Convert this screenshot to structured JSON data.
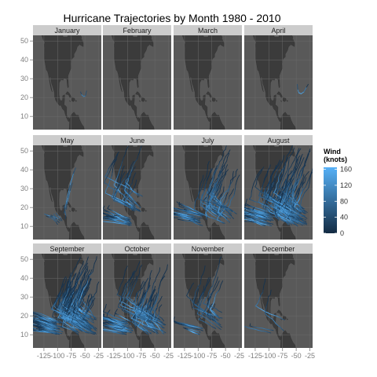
{
  "chart_data": {
    "type": "line",
    "title": "Hurricane Trajectories by Month 1980 - 2010",
    "xlabel": "",
    "ylabel": "",
    "xlim": [
      -145,
      -20
    ],
    "ylim": [
      3,
      53
    ],
    "x_ticks": [
      -125,
      -100,
      -75,
      -50,
      -25
    ],
    "x_tick_labels": [
      "-125",
      "-100",
      "-75",
      "-50",
      "-25"
    ],
    "y_ticks": [
      10,
      20,
      30,
      40,
      50
    ],
    "y_tick_labels": [
      "10",
      "20",
      "30",
      "40",
      "50"
    ],
    "facets": [
      {
        "month": "January",
        "track_count": 1
      },
      {
        "month": "February",
        "track_count": 0
      },
      {
        "month": "March",
        "track_count": 0
      },
      {
        "month": "April",
        "track_count": 1
      },
      {
        "month": "May",
        "track_count": 10
      },
      {
        "month": "June",
        "track_count": 35
      },
      {
        "month": "July",
        "track_count": 55
      },
      {
        "month": "August",
        "track_count": 110
      },
      {
        "month": "September",
        "track_count": 140
      },
      {
        "month": "October",
        "track_count": 75
      },
      {
        "month": "November",
        "track_count": 22
      },
      {
        "month": "December",
        "track_count": 4
      }
    ],
    "legend": {
      "title_lines": [
        "Wind",
        "(knots)"
      ],
      "ticks": [
        0,
        40,
        80,
        120,
        160
      ],
      "tick_labels": [
        "0",
        "40",
        "80",
        "120",
        "160"
      ],
      "range": [
        0,
        165
      ],
      "color_low": "#132b43",
      "color_high": "#56b1f7",
      "placement": "right"
    },
    "grid": true,
    "colors": {
      "panel_background": "#595959",
      "land": "#3b3b3b",
      "strip_background": "#cccccc"
    }
  }
}
